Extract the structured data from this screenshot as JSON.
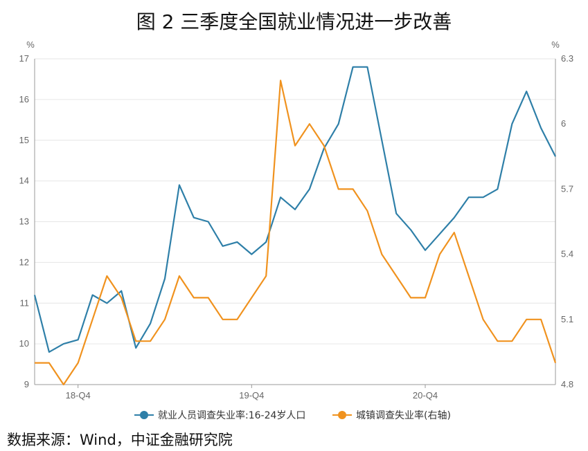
{
  "title": "图 2  三季度全国就业情况进一步改善",
  "source": "数据来源：Wind，中证金融研究院",
  "colors": {
    "youth": "#2E7FA8",
    "urban": "#F0921E",
    "grid": "#e6e6e6",
    "axis": "#999999"
  },
  "chart_data": {
    "type": "line",
    "y_left": {
      "unit": "%",
      "min": 9,
      "max": 17,
      "ticks": [
        "9",
        "10",
        "11",
        "12",
        "13",
        "14",
        "15",
        "16",
        "17"
      ]
    },
    "y_right": {
      "unit": "%",
      "min": 4.8,
      "max": 6.3,
      "ticks": [
        "4.8",
        "5.1",
        "5.4",
        "5.7",
        "6",
        "6.3"
      ]
    },
    "x_tick_labels": [
      {
        "index": 3,
        "label": "18-Q4"
      },
      {
        "index": 15,
        "label": "19-Q4"
      },
      {
        "index": 27,
        "label": "20-Q4"
      }
    ],
    "grid": true,
    "series": [
      {
        "name": "就业人员调查失业率:16-24岁人口",
        "axis": "left",
        "values": [
          11.2,
          9.8,
          10.0,
          10.1,
          11.2,
          11.0,
          11.3,
          9.9,
          10.5,
          11.6,
          13.9,
          13.1,
          13.0,
          12.4,
          12.5,
          12.2,
          12.5,
          13.6,
          13.3,
          13.8,
          14.8,
          15.4,
          16.8,
          16.8,
          15.0,
          13.2,
          12.8,
          12.3,
          12.7,
          13.1,
          13.6,
          13.6,
          13.8,
          15.4,
          16.2,
          15.3,
          14.6
        ]
      },
      {
        "name": "城镇调查失业率(右轴)",
        "axis": "right",
        "values": [
          4.9,
          4.9,
          4.8,
          4.9,
          5.1,
          5.3,
          5.2,
          5.0,
          5.0,
          5.1,
          5.3,
          5.2,
          5.2,
          5.1,
          5.1,
          5.2,
          5.3,
          6.2,
          5.9,
          6.0,
          5.9,
          5.7,
          5.7,
          5.6,
          5.4,
          5.3,
          5.2,
          5.2,
          5.4,
          5.5,
          5.3,
          5.1,
          5.0,
          5.0,
          5.1,
          5.1,
          4.9
        ]
      }
    ]
  }
}
